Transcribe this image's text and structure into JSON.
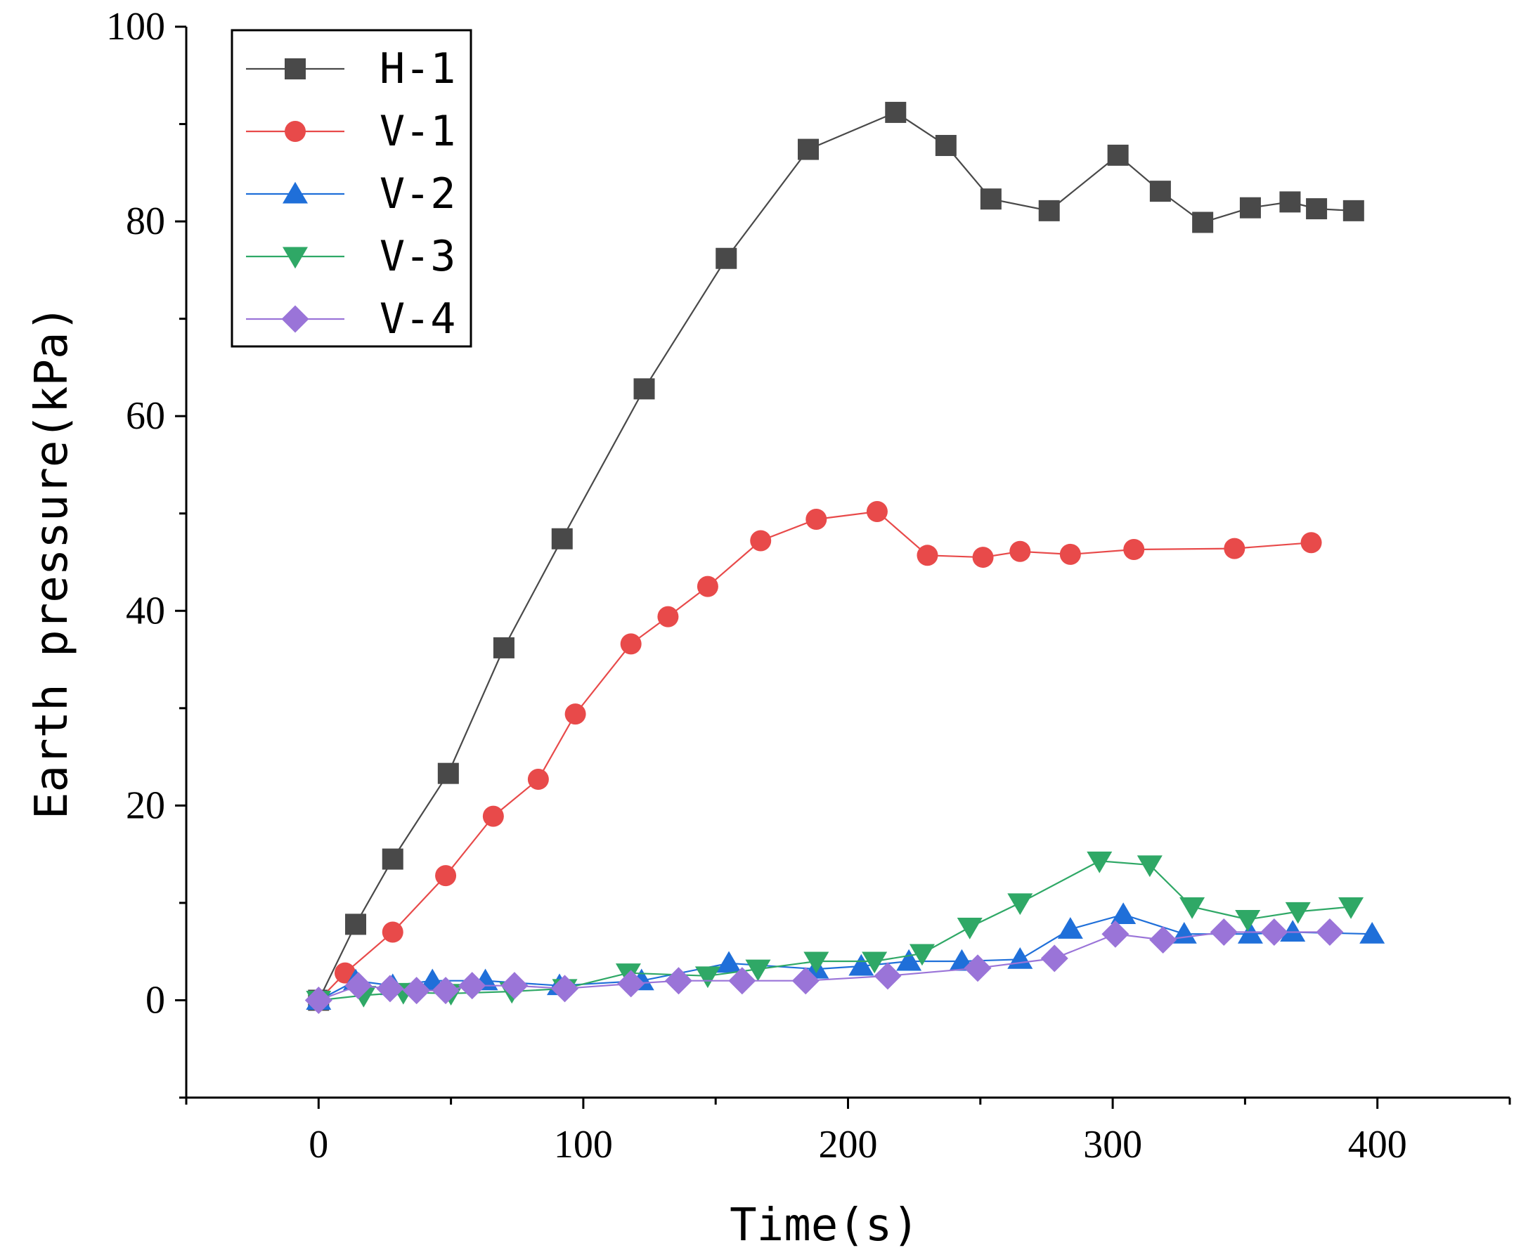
{
  "chart_data": {
    "type": "line",
    "title": "",
    "xlabel": "Time(s)",
    "ylabel": "Earth pressure(kPa)",
    "xlim": [
      -50,
      450
    ],
    "ylim": [
      -10,
      100
    ],
    "xticks": [
      0,
      100,
      200,
      300,
      400
    ],
    "yticks": [
      0,
      20,
      40,
      60,
      80,
      100
    ],
    "legend_position": "top-left",
    "series": [
      {
        "name": "H-1",
        "color": "#494949",
        "marker": "square",
        "x": [
          0,
          14,
          28,
          49,
          70,
          92,
          123,
          154,
          185,
          218,
          237,
          254,
          276,
          302,
          318,
          334,
          352,
          367,
          377,
          391
        ],
        "y": [
          0,
          7.8,
          14.5,
          23.3,
          36.2,
          47.4,
          62.8,
          76.2,
          87.4,
          91.2,
          87.8,
          82.3,
          81.1,
          86.8,
          83.1,
          79.9,
          81.4,
          82.0,
          81.3,
          81.1
        ]
      },
      {
        "name": "V-1",
        "color": "#e84a4a",
        "marker": "circle",
        "x": [
          0,
          10,
          28,
          48,
          66,
          83,
          97,
          118,
          132,
          147,
          167,
          188,
          211,
          230,
          251,
          265,
          284,
          308,
          346,
          375
        ],
        "y": [
          0,
          2.8,
          7.0,
          12.8,
          18.9,
          22.7,
          29.4,
          36.6,
          39.4,
          42.5,
          47.2,
          49.4,
          50.2,
          45.7,
          45.5,
          46.1,
          45.8,
          46.3,
          46.4,
          47.0
        ]
      },
      {
        "name": "V-2",
        "color": "#1f6fd9",
        "marker": "triangle-up",
        "x": [
          0,
          14,
          28,
          43,
          63,
          91,
          122,
          155,
          188,
          205,
          223,
          243,
          265,
          284,
          304,
          327,
          352,
          368,
          398
        ],
        "y": [
          0,
          2.0,
          1.5,
          2.0,
          2.0,
          1.5,
          2.0,
          3.8,
          3.2,
          3.5,
          4.0,
          4.0,
          4.2,
          7.3,
          8.8,
          6.8,
          6.8,
          7.0,
          6.8
        ]
      },
      {
        "name": "V-3",
        "color": "#2fa866",
        "marker": "triangle-down",
        "x": [
          0,
          17,
          32,
          50,
          73,
          93,
          117,
          147,
          166,
          188,
          210,
          228,
          246,
          265,
          295,
          314,
          330,
          351,
          370,
          390
        ],
        "y": [
          0,
          0.5,
          0.8,
          0.7,
          0.9,
          1.2,
          2.8,
          2.5,
          3.2,
          4.0,
          4.0,
          4.8,
          7.5,
          10.0,
          14.3,
          13.9,
          9.6,
          8.3,
          9.1,
          9.6
        ]
      },
      {
        "name": "V-4",
        "color": "#9a74d8",
        "marker": "diamond",
        "x": [
          0,
          15,
          27,
          37,
          48,
          58,
          74,
          93,
          118,
          136,
          160,
          184,
          215,
          249,
          278,
          301,
          319,
          342,
          361,
          382
        ],
        "y": [
          0,
          1.5,
          1.2,
          1.0,
          1.0,
          1.5,
          1.5,
          1.2,
          1.7,
          2.0,
          2.0,
          2.0,
          2.5,
          3.3,
          4.3,
          6.8,
          6.2,
          7.0,
          7.0,
          7.0
        ]
      }
    ]
  }
}
